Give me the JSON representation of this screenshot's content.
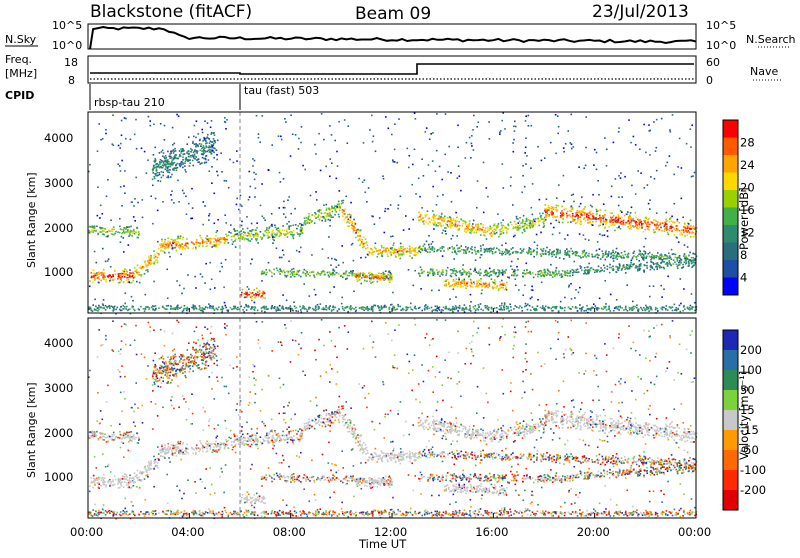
{
  "header": {
    "station": "Blackstone (fitACF)",
    "beam": "Beam 09",
    "date": "23/Jul/2013"
  },
  "summary_panels": {
    "nsky_label": "N.Sky",
    "nsky_ticks": [
      "10^5",
      "10^0"
    ],
    "nsearch_label": "N.Search",
    "nsearch_ticks": [
      "10^5",
      "10^0"
    ],
    "freq_label_line1": "Freq.",
    "freq_label_line2": "[MHz]",
    "freq_ticks": [
      "18",
      "8"
    ],
    "nave_label": "Nave",
    "nave_ticks": [
      "60",
      "0"
    ],
    "cpid_label": "CPID",
    "cpid_segments": [
      {
        "name": "rbsp-tau 210",
        "start_hour": 0.0
      },
      {
        "name": "tau (fast) 503",
        "start_hour": 6.0
      }
    ]
  },
  "chart_data": [
    {
      "type": "heatmap",
      "title": "Power",
      "ylabel": "Slant Range [km]",
      "xlabel": "",
      "ylim": [
        180,
        4550
      ],
      "xlim_hours": [
        0,
        24
      ],
      "yticks": [
        "1000",
        "2000",
        "3000",
        "4000"
      ],
      "colorbar_label": "Power [dB]",
      "colorbar_ticks": [
        "28",
        "24",
        "20",
        "16",
        "12",
        "8",
        "4"
      ],
      "colorbar_colors": [
        "#ff0000",
        "#ff5a00",
        "#ffa500",
        "#ffd800",
        "#9bd000",
        "#41b04a",
        "#2e8b6e",
        "#2a6e7e",
        "#1f4fa0",
        "#0000ff"
      ],
      "bands": [
        {
          "t0": 0.0,
          "r0": 1000,
          "t1": 1.8,
          "r1": 1000,
          "width": 220,
          "level": 0.9
        },
        {
          "t0": 1.8,
          "r0": 1050,
          "t1": 2.8,
          "r1": 1500,
          "width": 230,
          "level": 0.75
        },
        {
          "t0": 2.8,
          "r0": 1650,
          "t1": 5.5,
          "r1": 1800,
          "width": 220,
          "level": 0.8
        },
        {
          "t0": 0.0,
          "r0": 2000,
          "t1": 2.0,
          "r1": 1950,
          "width": 180,
          "level": 0.5
        },
        {
          "t0": 5.5,
          "r0": 1850,
          "t1": 8.5,
          "r1": 2000,
          "width": 220,
          "level": 0.55
        },
        {
          "t0": 8.5,
          "r0": 2200,
          "t1": 10.0,
          "r1": 2500,
          "width": 220,
          "level": 0.55
        },
        {
          "t0": 10.0,
          "r0": 2450,
          "t1": 11.0,
          "r1": 1600,
          "width": 260,
          "level": 0.8
        },
        {
          "t0": 11.0,
          "r0": 1550,
          "t1": 13.0,
          "r1": 1550,
          "width": 220,
          "level": 0.7
        },
        {
          "t0": 6.0,
          "r0": 600,
          "t1": 7.0,
          "r1": 600,
          "width": 170,
          "level": 0.95
        },
        {
          "t0": 6.8,
          "r0": 1100,
          "t1": 12.0,
          "r1": 1000,
          "width": 130,
          "level": 0.5
        },
        {
          "t0": 10.5,
          "r0": 1000,
          "t1": 12.0,
          "r1": 950,
          "width": 160,
          "level": 0.85
        },
        {
          "t0": 13.0,
          "r0": 2300,
          "t1": 16.0,
          "r1": 1950,
          "width": 240,
          "level": 0.75
        },
        {
          "t0": 16.0,
          "r0": 2000,
          "t1": 18.0,
          "r1": 2200,
          "width": 220,
          "level": 0.6
        },
        {
          "t0": 18.0,
          "r0": 2400,
          "t1": 24.0,
          "r1": 2000,
          "width": 260,
          "level": 0.9
        },
        {
          "t0": 13.0,
          "r0": 1600,
          "t1": 24.0,
          "r1": 1400,
          "width": 140,
          "level": 0.4
        },
        {
          "t0": 13.0,
          "r0": 1100,
          "t1": 19.0,
          "r1": 1050,
          "width": 140,
          "level": 0.45
        },
        {
          "t0": 14.0,
          "r0": 850,
          "t1": 16.5,
          "r1": 800,
          "width": 170,
          "level": 0.8
        },
        {
          "t0": 19.0,
          "r0": 1100,
          "t1": 24.0,
          "r1": 1300,
          "width": 150,
          "level": 0.35
        },
        {
          "t0": 2.5,
          "r0": 3300,
          "t1": 5.0,
          "r1": 3900,
          "width": 450,
          "level": 0.3
        },
        {
          "t0": 0.0,
          "r0": 300,
          "t1": 24.0,
          "r1": 300,
          "width": 100,
          "level": 0.35
        }
      ]
    },
    {
      "type": "heatmap",
      "title": "Velocity",
      "ylabel": "Slant Range [km]",
      "xlabel": "Time UT",
      "ylim": [
        180,
        4550
      ],
      "xlim_hours": [
        0,
        24
      ],
      "xticks": [
        "00:00",
        "04:00",
        "08:00",
        "12:00",
        "16:00",
        "20:00",
        "00:00"
      ],
      "yticks": [
        "1000",
        "2000",
        "3000",
        "4000"
      ],
      "colorbar_label": "Velocity [m s⁻¹]",
      "colorbar_ticks": [
        "200",
        "100",
        "50",
        "15",
        "-15",
        "-50",
        "-100",
        "-200"
      ],
      "colorbar_colors": [
        "#1e28b4",
        "#2a6ea8",
        "#2e8b57",
        "#7cd23c",
        "#c8c8c8",
        "#ff9a00",
        "#ff6a00",
        "#ff2a00",
        "#e10000"
      ]
    }
  ]
}
